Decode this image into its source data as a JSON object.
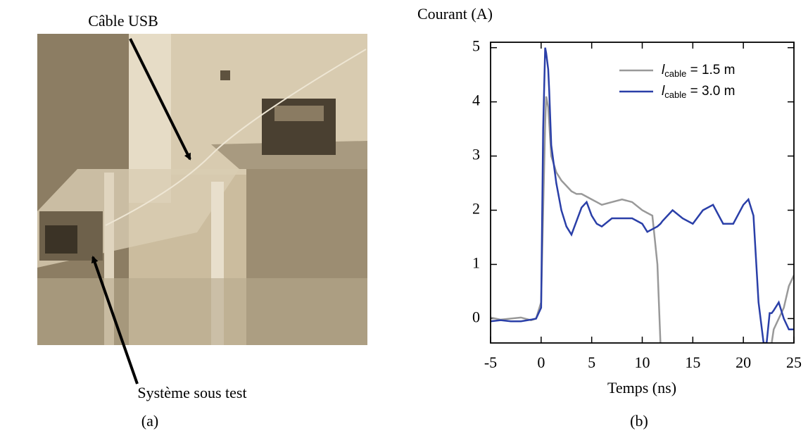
{
  "panel_a": {
    "labels": [
      "Câble USB",
      "Système sous test"
    ],
    "caption": "(a)"
  },
  "chart_data": {
    "type": "line",
    "caption": "(b)",
    "xlabel": "Temps (ns)",
    "ylabel": "Courant (A)",
    "xlim": [
      -5,
      25
    ],
    "ylim": [
      -0.45,
      5.1
    ],
    "xticks": [
      -5,
      0,
      5,
      10,
      15,
      20,
      25
    ],
    "yticks": [
      0,
      1,
      2,
      3,
      4,
      5
    ],
    "x": [
      -5,
      -4,
      -3,
      -2,
      -1,
      -0.5,
      0,
      0.2,
      0.4,
      0.5,
      0.7,
      0.8,
      1,
      1.5,
      2,
      2.5,
      3,
      3.5,
      4,
      4.5,
      5,
      5.5,
      6,
      7,
      8,
      9,
      10,
      10.5,
      11,
      11.5,
      11.8,
      12,
      13,
      14,
      15,
      16,
      17,
      18,
      19,
      20,
      20.5,
      21,
      21.5,
      22,
      22.3,
      22.6,
      22.8,
      23,
      23.5,
      24,
      24.5,
      25
    ],
    "series": [
      {
        "name": [
          "l",
          "cable",
          " = 1.5 m"
        ],
        "color": "#999999",
        "values": [
          0.02,
          -0.02,
          0.0,
          0.02,
          -0.03,
          0.0,
          0.3,
          2.0,
          3.6,
          4.1,
          3.9,
          3.6,
          3.0,
          2.7,
          2.55,
          2.45,
          2.35,
          2.3,
          2.3,
          2.25,
          2.2,
          2.15,
          2.1,
          2.15,
          2.2,
          2.15,
          2.0,
          1.95,
          1.9,
          1.0,
          -0.45,
          null,
          null,
          null,
          null,
          null,
          null,
          null,
          null,
          null,
          null,
          null,
          null,
          null,
          null,
          null,
          -0.45,
          -0.2,
          0.0,
          0.2,
          0.6,
          0.8
        ]
      },
      {
        "name": [
          "l",
          "cable",
          " = 3.0 m"
        ],
        "color": "#2a3fa8",
        "values": [
          -0.05,
          -0.03,
          -0.05,
          -0.05,
          -0.02,
          0.0,
          0.2,
          3.5,
          5.0,
          4.9,
          4.6,
          4.2,
          3.2,
          2.5,
          2.0,
          1.7,
          1.55,
          1.8,
          2.05,
          2.15,
          1.9,
          1.75,
          1.7,
          1.85,
          1.85,
          1.85,
          1.75,
          1.6,
          1.65,
          1.7,
          1.75,
          1.8,
          2.0,
          1.85,
          1.75,
          2.0,
          2.1,
          1.75,
          1.75,
          2.1,
          2.2,
          1.9,
          0.3,
          -0.45,
          -0.45,
          0.1,
          0.1,
          0.15,
          0.3,
          0.0,
          -0.2,
          -0.2
        ]
      }
    ]
  }
}
